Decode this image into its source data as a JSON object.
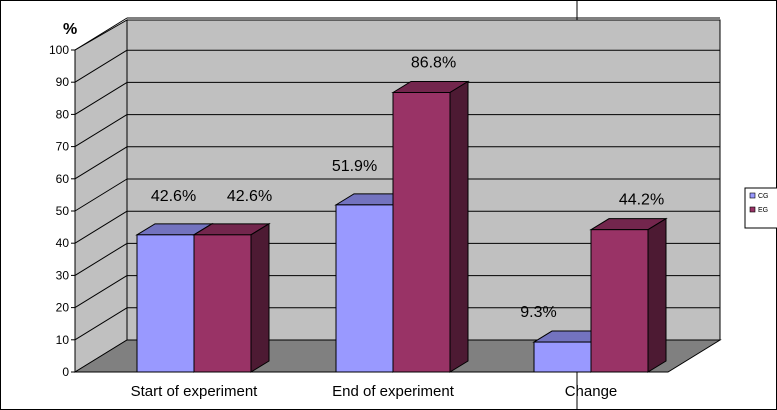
{
  "chart_data": {
    "type": "bar",
    "y_unit": "%",
    "categories": [
      "Start of experiment",
      "End of experiment",
      "Change"
    ],
    "series": [
      {
        "name": "CG",
        "color": "#9999FF",
        "values": [
          42.6,
          51.9,
          9.3
        ],
        "labels": [
          "42.6%",
          "51.9%",
          "9.3%"
        ]
      },
      {
        "name": "EG",
        "color": "#993366",
        "values": [
          42.6,
          86.8,
          44.2
        ],
        "labels": [
          "42.6%",
          "86.8%",
          "44.2%"
        ]
      }
    ],
    "yticks": [
      0,
      10,
      20,
      30,
      40,
      50,
      60,
      70,
      80,
      90,
      100
    ],
    "ylim": [
      0,
      100
    ],
    "grid": true,
    "three_d": true,
    "legend_position": "right"
  }
}
